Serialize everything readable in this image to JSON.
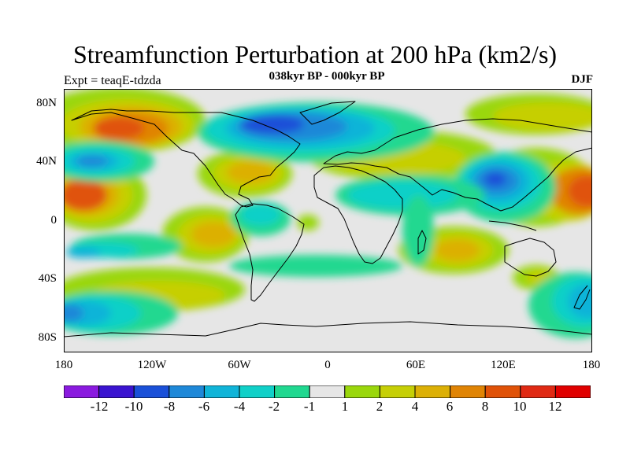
{
  "header": {
    "title": "Streamfunction Perturbation at 200 hPa (km2/s)",
    "subtitle": "038kyr BP - 000kyr BP",
    "left_label": "Expt = teaqE-tdzda",
    "right_label": "DJF"
  },
  "map": {
    "projection": "cylindrical equidistant",
    "lat_ticks": [
      "80N",
      "40N",
      "0",
      "40S",
      "80S"
    ],
    "lon_ticks": [
      "180",
      "120W",
      "60W",
      "0",
      "60E",
      "120E",
      "180"
    ]
  },
  "colorbar": {
    "labels": [
      "-12",
      "-10",
      "-8",
      "-6",
      "-4",
      "-2",
      "-1",
      "1",
      "2",
      "4",
      "6",
      "8",
      "10",
      "12"
    ],
    "colors": [
      "#8a1adf",
      "#3a14d0",
      "#1a50d8",
      "#1e88d8",
      "#10b4d8",
      "#10d0c8",
      "#20d890",
      "#e6e6e6",
      "#9ad70c",
      "#c6cf06",
      "#dcb006",
      "#e08404",
      "#e05208",
      "#e02a14",
      "#e00000"
    ]
  }
}
